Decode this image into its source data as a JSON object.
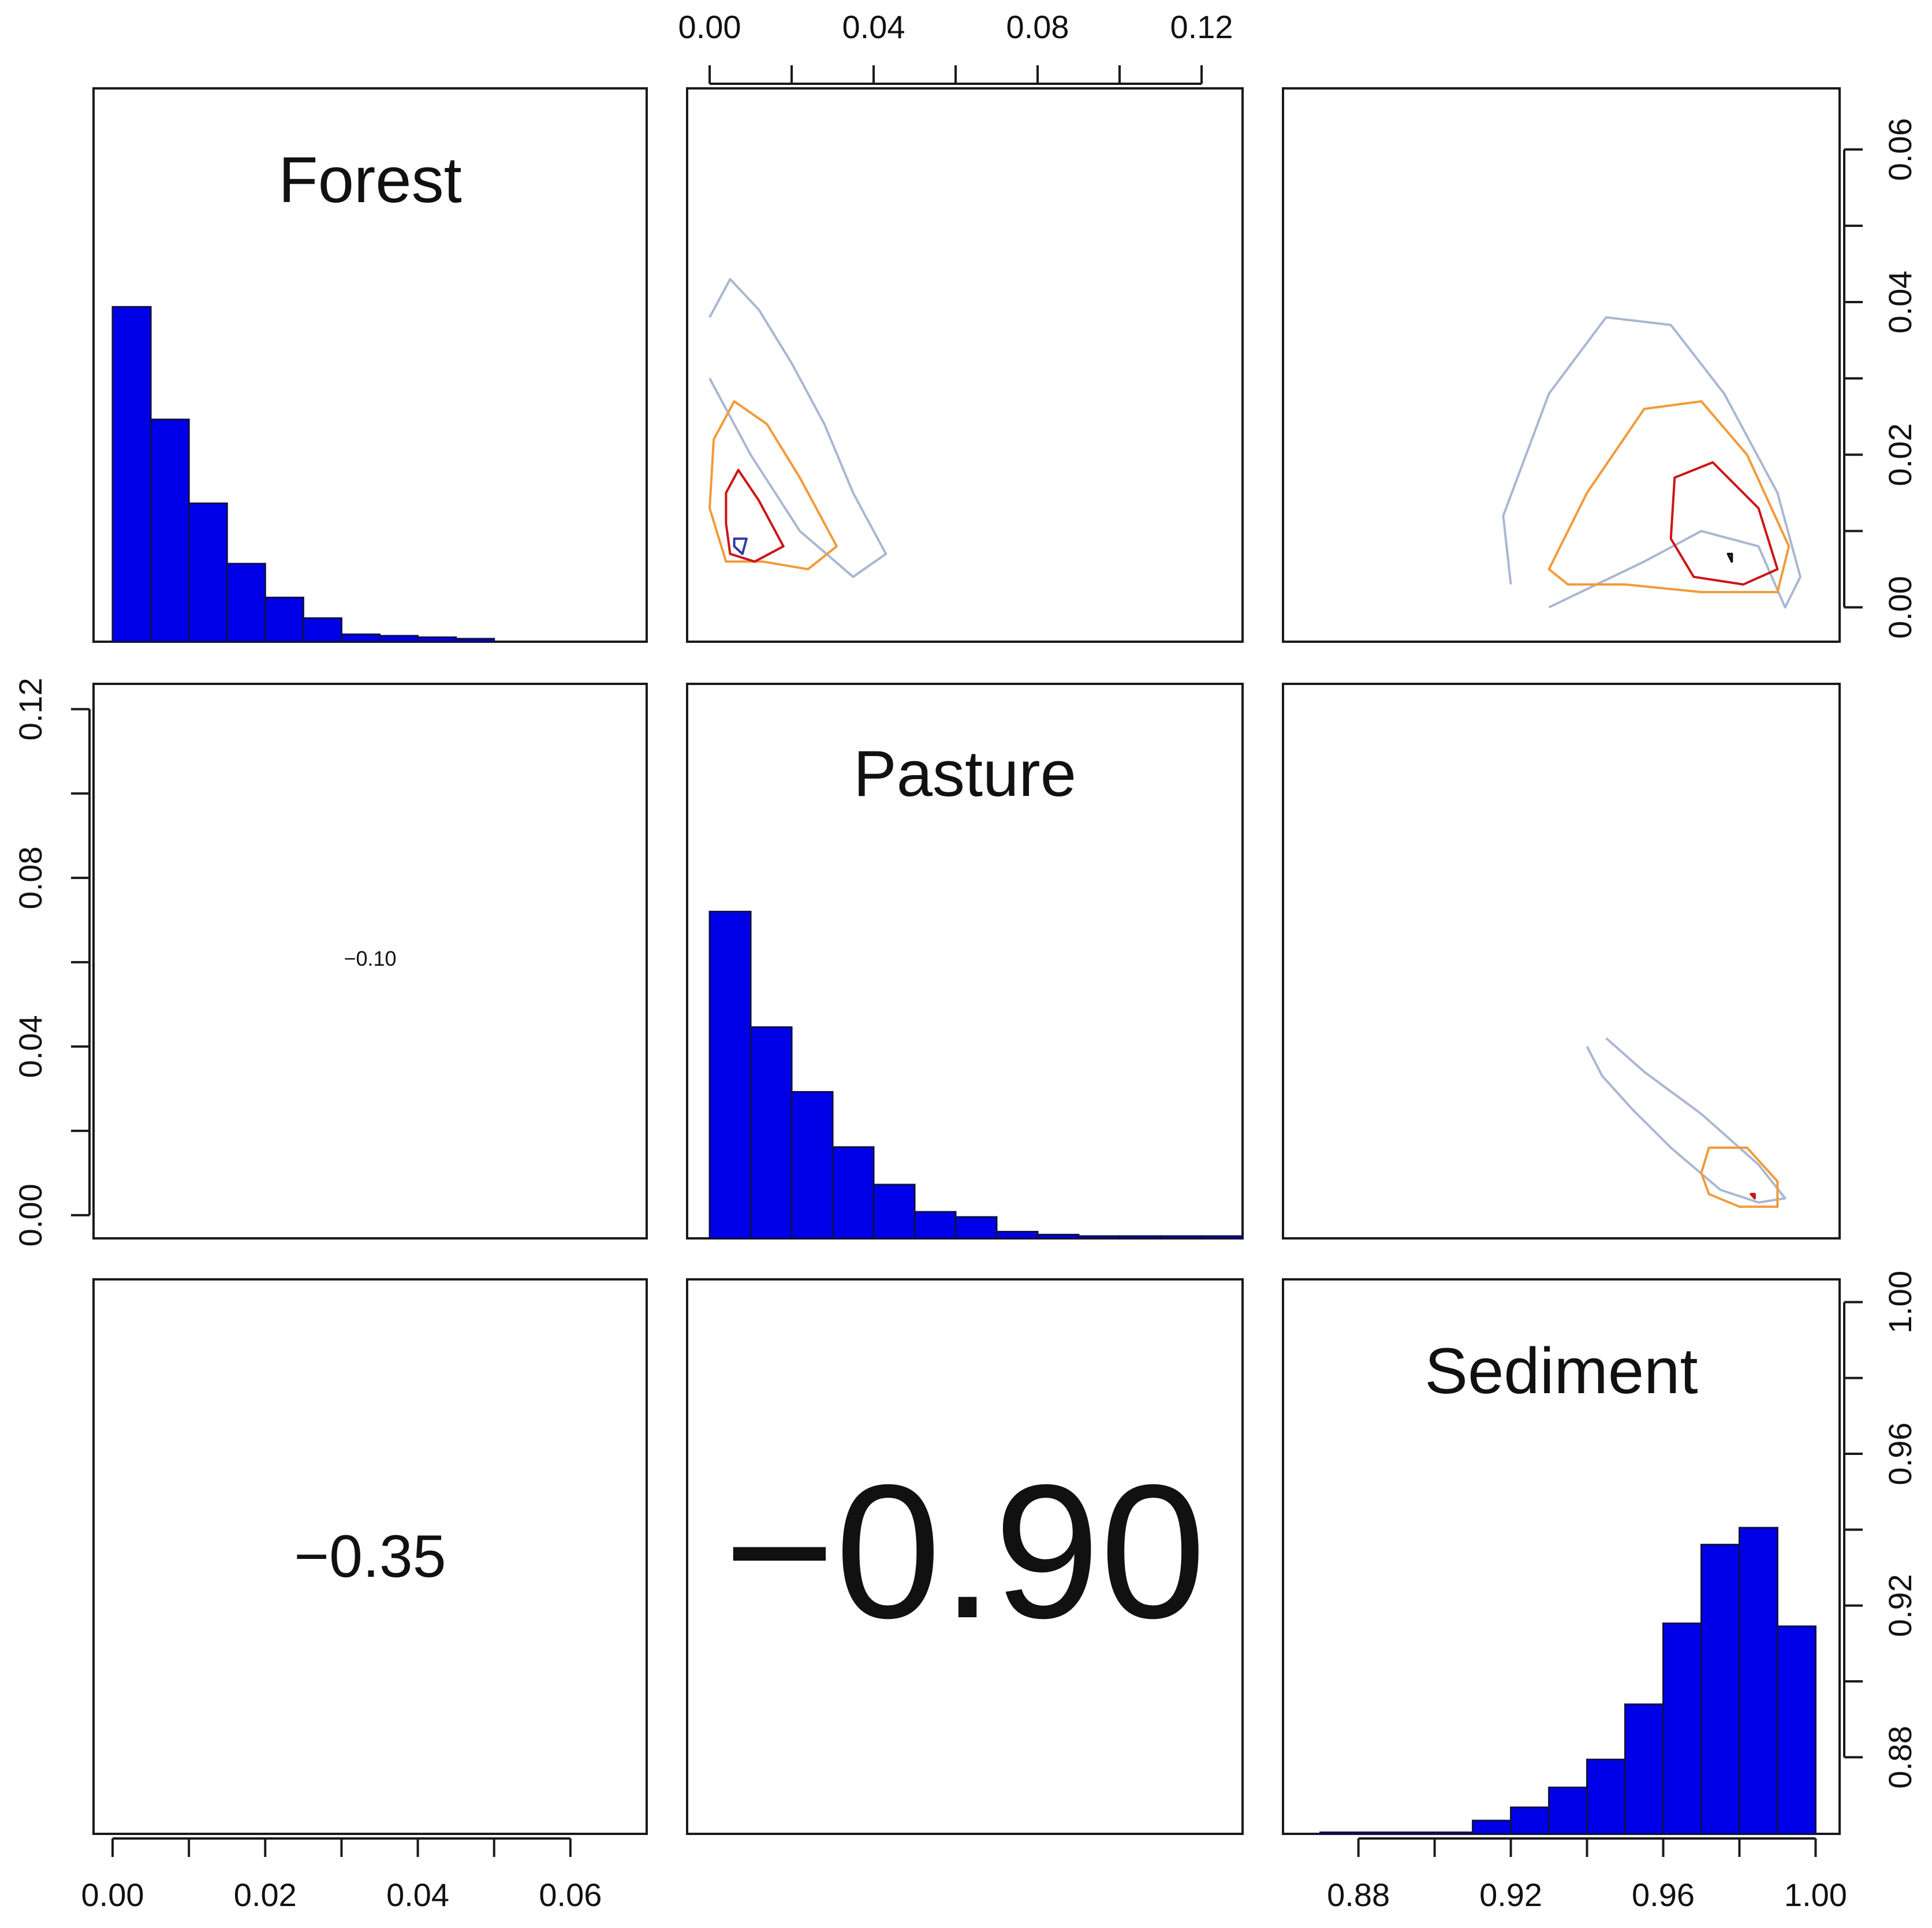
{
  "chart_data": {
    "type": "pairs",
    "variables": [
      "Forest",
      "Pasture",
      "Sediment"
    ],
    "diagonal": [
      {
        "variable": "Forest",
        "type": "bar",
        "label": "Forest",
        "bins": [
          0,
          0.005,
          0.01,
          0.015,
          0.02,
          0.025,
          0.03,
          0.035,
          0.04,
          0.045,
          0.05
        ],
        "values": [
          0.455,
          0.302,
          0.188,
          0.106,
          0.06,
          0.032,
          0.01,
          0.008,
          0.006,
          0.004
        ]
      },
      {
        "variable": "Pasture",
        "type": "bar",
        "label": "Pasture",
        "bins": [
          0,
          0.01,
          0.02,
          0.03,
          0.04,
          0.05,
          0.06,
          0.07,
          0.08,
          0.09,
          0.1,
          0.11,
          0.12,
          0.13
        ],
        "values": [
          0.444,
          0.287,
          0.199,
          0.124,
          0.073,
          0.036,
          0.029,
          0.009,
          0.005,
          0.003,
          0.003,
          0.003,
          0.003
        ]
      },
      {
        "variable": "Sediment",
        "type": "bar",
        "label": "Sediment",
        "bins": [
          0.87,
          0.88,
          0.89,
          0.9,
          0.91,
          0.92,
          0.93,
          0.94,
          0.95,
          0.96,
          0.97,
          0.98,
          0.99,
          1.0
        ],
        "values": [
          0.002,
          0.002,
          0.002,
          0.002,
          0.018,
          0.036,
          0.063,
          0.101,
          0.176,
          0.286,
          0.393,
          0.416,
          0.282
        ]
      }
    ],
    "correlations": [
      {
        "pair": [
          "Forest",
          "Pasture"
        ],
        "value": -0.1,
        "label": "−0.10"
      },
      {
        "pair": [
          "Forest",
          "Sediment"
        ],
        "value": -0.35,
        "label": "−0.35"
      },
      {
        "pair": [
          "Pasture",
          "Sediment"
        ],
        "value": -0.9,
        "label": "−0.90"
      }
    ],
    "density_contours": [
      {
        "x": "Pasture",
        "y": "Forest",
        "levels": [
          {
            "color": "#a9b7d2",
            "points": [
              [
                0.0,
                0.038
              ],
              [
                0.005,
                0.043
              ],
              [
                0.012,
                0.039
              ],
              [
                0.02,
                0.032
              ],
              [
                0.028,
                0.024
              ],
              [
                0.035,
                0.015
              ],
              [
                0.043,
                0.007
              ],
              [
                0.035,
                0.004
              ],
              [
                0.022,
                0.01
              ],
              [
                0.01,
                0.02
              ],
              [
                0.0,
                0.03
              ]
            ]
          },
          {
            "color": "#f29a3a",
            "points": [
              [
                0.001,
                0.022
              ],
              [
                0.006,
                0.027
              ],
              [
                0.014,
                0.024
              ],
              [
                0.022,
                0.017
              ],
              [
                0.031,
                0.008
              ],
              [
                0.024,
                0.005
              ],
              [
                0.013,
                0.006
              ],
              [
                0.004,
                0.006
              ],
              [
                0.0,
                0.013
              ]
            ]
          },
          {
            "color": "#cc1515",
            "points": [
              [
                0.004,
                0.015
              ],
              [
                0.007,
                0.018
              ],
              [
                0.012,
                0.014
              ],
              [
                0.018,
                0.008
              ],
              [
                0.011,
                0.006
              ],
              [
                0.005,
                0.007
              ],
              [
                0.004,
                0.011
              ]
            ]
          },
          {
            "color": "#2a3ca6",
            "points": [
              [
                0.006,
                0.009
              ],
              [
                0.009,
                0.009
              ],
              [
                0.008,
                0.007
              ],
              [
                0.006,
                0.008
              ]
            ]
          }
        ]
      },
      {
        "x": "Sediment",
        "y": "Forest",
        "levels": [
          {
            "color": "#a9b7d2",
            "points": [
              [
                0.92,
                0.003
              ],
              [
                0.918,
                0.012
              ],
              [
                0.93,
                0.028
              ],
              [
                0.945,
                0.038
              ],
              [
                0.962,
                0.037
              ],
              [
                0.976,
                0.028
              ],
              [
                0.99,
                0.015
              ],
              [
                0.996,
                0.004
              ],
              [
                0.992,
                0.0
              ],
              [
                0.985,
                0.008
              ],
              [
                0.97,
                0.01
              ],
              [
                0.955,
                0.006
              ],
              [
                0.93,
                0.0
              ]
            ]
          },
          {
            "color": "#f29a3a",
            "points": [
              [
                0.93,
                0.005
              ],
              [
                0.94,
                0.015
              ],
              [
                0.955,
                0.026
              ],
              [
                0.97,
                0.027
              ],
              [
                0.982,
                0.02
              ],
              [
                0.993,
                0.008
              ],
              [
                0.99,
                0.002
              ],
              [
                0.97,
                0.002
              ],
              [
                0.95,
                0.003
              ],
              [
                0.935,
                0.003
              ]
            ]
          },
          {
            "color": "#cc1515",
            "points": [
              [
                0.962,
                0.009
              ],
              [
                0.963,
                0.017
              ],
              [
                0.973,
                0.019
              ],
              [
                0.985,
                0.013
              ],
              [
                0.99,
                0.005
              ],
              [
                0.981,
                0.003
              ],
              [
                0.968,
                0.004
              ]
            ]
          },
          {
            "color": "#111111",
            "points": [
              [
                0.977,
                0.007
              ],
              [
                0.978,
                0.007
              ],
              [
                0.978,
                0.006
              ]
            ]
          }
        ]
      },
      {
        "x": "Sediment",
        "y": "Pasture",
        "levels": [
          {
            "color": "#a9b7d2",
            "points": [
              [
                0.94,
                0.04
              ],
              [
                0.944,
                0.033
              ],
              [
                0.952,
                0.025
              ],
              [
                0.962,
                0.016
              ],
              [
                0.975,
                0.006
              ],
              [
                0.985,
                0.003
              ],
              [
                0.992,
                0.004
              ],
              [
                0.985,
                0.012
              ],
              [
                0.97,
                0.024
              ],
              [
                0.955,
                0.034
              ],
              [
                0.945,
                0.042
              ]
            ]
          },
          {
            "color": "#f29a3a",
            "points": [
              [
                0.97,
                0.01
              ],
              [
                0.972,
                0.016
              ],
              [
                0.982,
                0.016
              ],
              [
                0.99,
                0.008
              ],
              [
                0.99,
                0.002
              ],
              [
                0.98,
                0.002
              ],
              [
                0.972,
                0.005
              ]
            ]
          },
          {
            "color": "#cc1515",
            "points": [
              [
                0.983,
                0.005
              ],
              [
                0.984,
                0.005
              ],
              [
                0.984,
                0.004
              ]
            ]
          }
        ]
      }
    ],
    "axes": {
      "Forest": {
        "xlim": [
          -0.0025,
          0.07
        ],
        "ylim": [
          -0.0045,
          0.068
        ],
        "ticks": [
          0.0,
          0.01,
          0.02,
          0.03,
          0.04,
          0.05,
          0.06
        ],
        "labels": [
          0.0,
          0.02,
          0.04,
          0.06
        ],
        "tick_labels": [
          "0.00",
          "0.02",
          "0.04",
          "0.06"
        ]
      },
      "Pasture": {
        "xlim": [
          -0.0055,
          0.13
        ],
        "ylim": [
          -0.0055,
          0.126
        ],
        "ticks": [
          0.0,
          0.02,
          0.04,
          0.06,
          0.08,
          0.1,
          0.12
        ],
        "labels": [
          0.0,
          0.04,
          0.08,
          0.12
        ],
        "tick_labels": [
          "0.00",
          "0.04",
          "0.08",
          "0.12"
        ]
      },
      "Sediment": {
        "xlim": [
          0.8602,
          1.0063
        ],
        "ylim": [
          0.8598,
          1.006
        ],
        "ticks": [
          0.88,
          0.9,
          0.92,
          0.94,
          0.96,
          0.98,
          1.0
        ],
        "labels": [
          0.88,
          0.92,
          0.96,
          1.0
        ],
        "tick_labels": [
          "0.88",
          "0.92",
          "0.96",
          "1.00"
        ]
      }
    },
    "axis_sides": {
      "top": "Pasture",
      "right_top": "Forest",
      "left_middle": "Pasture",
      "right_bottom": "Sediment",
      "bottom_left": "Forest",
      "bottom_right": "Sediment"
    },
    "colors": {
      "bar_fill": "#0000e8",
      "bar_edge": "#10104a",
      "frame": "#1a1a1a"
    }
  }
}
